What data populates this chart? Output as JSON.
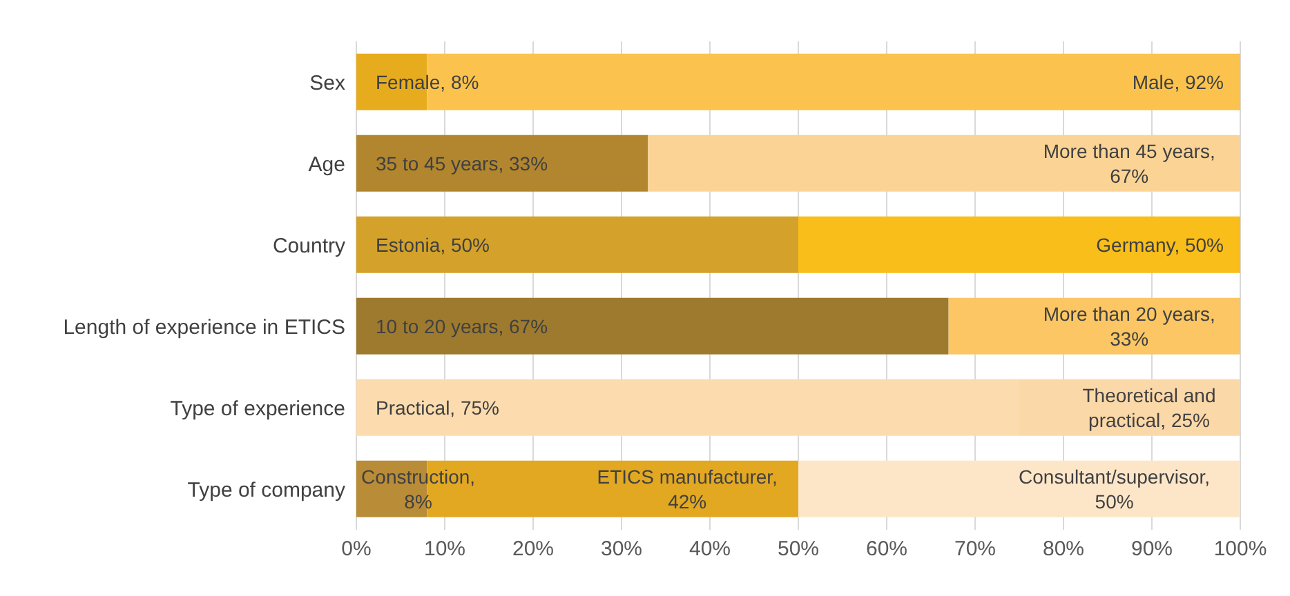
{
  "chart_data": {
    "type": "bar",
    "orientation": "horizontal",
    "stacked": true,
    "categories": [
      "Sex",
      "Age",
      "Country",
      "Length of experience in ETICS",
      "Type of experience",
      "Type of company"
    ],
    "series": [
      {
        "colors": [
          "#e6ac1e",
          "#b2862e",
          "#d4a22a",
          "#9e7a2e",
          "#fcdcae",
          "#b98c38"
        ],
        "values": [
          8,
          33,
          50,
          67,
          75,
          8
        ],
        "value_labels": [
          "Female, 8%",
          "35 to 45 years, 33%",
          "Estonia, 50%",
          "10 to 20 years, 67%",
          "Practical, 75%",
          "Construction, 8%"
        ]
      },
      {
        "colors": [
          "#fbc34d",
          "#fbd495",
          "#f9be1a",
          "#fbc663",
          "#fbd8a8",
          "#e2a822"
        ],
        "values": [
          92,
          67,
          50,
          33,
          25,
          42
        ],
        "value_labels": [
          "Male, 92%",
          "More than 45 years, 67%",
          "Germany, 50%",
          "More than 20 years, 33%",
          "Theoretical and practical, 25%",
          "ETICS manufacturer, 42%"
        ]
      },
      {
        "colors": [
          null,
          null,
          null,
          null,
          null,
          "#fde6c8"
        ],
        "values": [
          null,
          null,
          null,
          null,
          null,
          50
        ],
        "value_labels": [
          null,
          null,
          null,
          null,
          null,
          "Consultant/supervisor, 50%"
        ]
      }
    ],
    "xlim": [
      0,
      100
    ],
    "xticks": [
      {
        "value": 0,
        "label": "0%"
      },
      {
        "value": 10,
        "label": "10%"
      },
      {
        "value": 20,
        "label": "20%"
      },
      {
        "value": 30,
        "label": "30%"
      },
      {
        "value": 40,
        "label": "40%"
      },
      {
        "value": 50,
        "label": "50%"
      },
      {
        "value": 60,
        "label": "60%"
      },
      {
        "value": 70,
        "label": "70%"
      },
      {
        "value": 80,
        "label": "80%"
      },
      {
        "value": 90,
        "label": "90%"
      },
      {
        "value": 100,
        "label": "100%"
      }
    ],
    "grid": "x",
    "legend": false
  }
}
